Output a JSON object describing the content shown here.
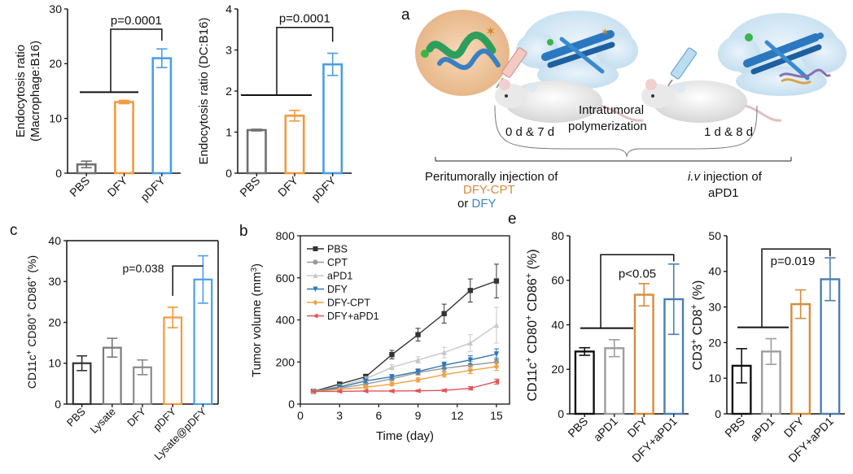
{
  "panel_letters": {
    "a": "a",
    "b": "b",
    "c": "c",
    "e": "e"
  },
  "scheme": {
    "intratumoral": "Intratumoral",
    "polymerization": "polymerization",
    "day_left": "0 d & 7 d",
    "day_right": "1 d & 8 d",
    "peri_line1": "Peritumorally injection of",
    "peri_dfycpt": "DFY-CPT",
    "peri_or": "or ",
    "peri_dfy": "DFY",
    "iv_italic": "i.v",
    "iv_rest": " injection of",
    "iv_line2": "aPD1",
    "colors": {
      "dfy": "#3b86c6",
      "dfycpt": "#d78a3c"
    }
  },
  "chart_data": [
    {
      "id": "macrophage",
      "type": "bar",
      "ylabel_line1": "Endocytosis ratio",
      "ylabel_line2": "(Macrophage:B16)",
      "categories": [
        "PBS",
        "DFY",
        "pDFY"
      ],
      "values": [
        1.6,
        13.0,
        21.0
      ],
      "errors": [
        0.6,
        0.3,
        1.7
      ],
      "colors": [
        "#6f6f6f",
        "#f39a3d",
        "#4a9ee8"
      ],
      "ylim": [
        0,
        30
      ],
      "yticks": [
        0,
        10,
        20,
        30
      ],
      "annotation": "p=0.0001"
    },
    {
      "id": "dc",
      "type": "bar",
      "ylabel_line1": "Endocytosis ratio (DC:B16)",
      "categories": [
        "PBS",
        "DFY",
        "pDFY"
      ],
      "values": [
        1.05,
        1.4,
        2.65
      ],
      "errors": [
        0.02,
        0.13,
        0.27
      ],
      "colors": [
        "#6f6f6f",
        "#f39a3d",
        "#4a9ee8"
      ],
      "ylim": [
        0,
        4
      ],
      "yticks": [
        0,
        1,
        2,
        3,
        4
      ],
      "annotation": "p=0.0001"
    },
    {
      "id": "cd80",
      "type": "bar",
      "categories": [
        "PBS",
        "Lysate",
        "DFY",
        "pDFY",
        "Lysate@pDFY"
      ],
      "values": [
        10,
        13.8,
        9,
        21.2,
        30.5
      ],
      "errors": [
        1.8,
        2.3,
        1.8,
        2.5,
        5.8
      ],
      "colors": [
        "#333333",
        "#7a7a7a",
        "#8a8a8a",
        "#f39a3d",
        "#4a9ee8"
      ],
      "ylim": [
        0,
        40
      ],
      "yticks": [
        0,
        10,
        20,
        30,
        40
      ],
      "annotation": "p=0.038"
    },
    {
      "id": "tumor",
      "type": "line",
      "xlabel": "Time (day)",
      "ylabel": "Tumor volume (mm",
      "ylabel_sup": "3",
      "ylabel_end": ")",
      "x": [
        1,
        3,
        5,
        7,
        9,
        11,
        13,
        15
      ],
      "xlim": [
        0,
        16
      ],
      "xticks": [
        0,
        3,
        6,
        9,
        12,
        15
      ],
      "ylim": [
        0,
        800
      ],
      "yticks": [
        0,
        200,
        400,
        600,
        800
      ],
      "series": [
        {
          "name": "PBS",
          "color": "#333333",
          "marker": "square",
          "values": [
            60,
            95,
            130,
            235,
            330,
            430,
            540,
            585
          ],
          "errors": [
            5,
            8,
            12,
            20,
            30,
            45,
            55,
            80
          ]
        },
        {
          "name": "CPT",
          "color": "#999999",
          "marker": "circle",
          "values": [
            60,
            75,
            95,
            120,
            150,
            170,
            185,
            200
          ],
          "errors": [
            4,
            6,
            8,
            10,
            12,
            15,
            18,
            20
          ]
        },
        {
          "name": "aPD1",
          "color": "#c8c8c8",
          "marker": "triangle",
          "values": [
            60,
            85,
            120,
            175,
            210,
            245,
            290,
            375
          ],
          "errors": [
            4,
            8,
            10,
            12,
            15,
            25,
            40,
            85
          ]
        },
        {
          "name": "DFY",
          "color": "#2f78b2",
          "marker": "down-triangle",
          "values": [
            60,
            80,
            110,
            130,
            155,
            185,
            210,
            238
          ],
          "errors": [
            4,
            6,
            8,
            10,
            12,
            15,
            20,
            25
          ]
        },
        {
          "name": "DFY-CPT",
          "color": "#f2a040",
          "marker": "diamond",
          "values": [
            60,
            70,
            80,
            95,
            115,
            140,
            160,
            178
          ],
          "errors": [
            3,
            5,
            6,
            8,
            10,
            12,
            15,
            18
          ]
        },
        {
          "name": "DFY+aPD1",
          "color": "#e2535a",
          "marker": "left-triangle",
          "values": [
            60,
            60,
            62,
            62,
            63,
            65,
            75,
            107
          ],
          "errors": [
            3,
            3,
            3,
            4,
            4,
            5,
            8,
            12
          ]
        }
      ]
    },
    {
      "id": "cd80_86",
      "type": "bar",
      "ylabel_a": "CD11c",
      "ylabel_b": "CD80",
      "ylabel_c": "CD86",
      "ylabel_d": "(%)",
      "sup": "+",
      "categories": [
        "PBS",
        "aPD1",
        "DFY",
        "DFY+aPD1"
      ],
      "values": [
        28,
        29.5,
        53.5,
        51.5
      ],
      "errors": [
        1.7,
        3.8,
        5.0,
        15.8
      ],
      "colors": [
        "#111111",
        "#9e9e9e",
        "#d88b3a",
        "#4a7eb5"
      ],
      "ylim": [
        0,
        80
      ],
      "yticks": [
        0,
        20,
        40,
        60,
        80
      ],
      "annotation": "p<0.05"
    },
    {
      "id": "cd3_8",
      "type": "bar",
      "ylabel_a": "CD3",
      "ylabel_b": "CD8",
      "ylabel_c": "(%)",
      "sup": "+",
      "categories": [
        "PBS",
        "aPD1",
        "DFY",
        "DFY+aPD1"
      ],
      "values": [
        13.5,
        17.5,
        30.8,
        37.8
      ],
      "errors": [
        4.8,
        3.6,
        4.0,
        6.0
      ],
      "colors": [
        "#111111",
        "#9e9e9e",
        "#d88b3a",
        "#4a7eb5"
      ],
      "ylim": [
        0,
        50
      ],
      "yticks": [
        0,
        10,
        20,
        30,
        40,
        50
      ],
      "annotation": "p=0.019"
    }
  ]
}
